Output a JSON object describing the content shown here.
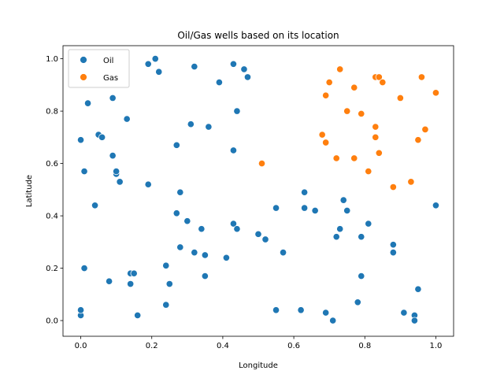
{
  "chart_data": {
    "type": "scatter",
    "title": "Oil/Gas wells based on its location",
    "xlabel": "Longitude",
    "ylabel": "Latitude",
    "xlim": [
      -0.05,
      1.05
    ],
    "ylim": [
      -0.06,
      1.05
    ],
    "xticks": [
      0.0,
      0.2,
      0.4,
      0.6,
      0.8,
      1.0
    ],
    "yticks": [
      0.0,
      0.2,
      0.4,
      0.6,
      0.8,
      1.0
    ],
    "xtick_labels": [
      "0.0",
      "0.2",
      "0.4",
      "0.6",
      "0.8",
      "1.0"
    ],
    "ytick_labels": [
      "0.0",
      "0.2",
      "0.4",
      "0.6",
      "0.8",
      "1.0"
    ],
    "grid": false,
    "legend_position": "top-left",
    "series": [
      {
        "name": "Oil",
        "color": "#1f77b4",
        "points": [
          [
            0.0,
            0.02
          ],
          [
            0.0,
            0.04
          ],
          [
            0.01,
            0.2
          ],
          [
            0.0,
            0.69
          ],
          [
            0.02,
            0.83
          ],
          [
            0.01,
            0.57
          ],
          [
            0.04,
            0.44
          ],
          [
            0.05,
            0.71
          ],
          [
            0.06,
            0.7
          ],
          [
            0.08,
            0.15
          ],
          [
            0.09,
            0.63
          ],
          [
            0.09,
            0.85
          ],
          [
            0.1,
            0.56
          ],
          [
            0.1,
            0.57
          ],
          [
            0.11,
            0.53
          ],
          [
            0.13,
            0.77
          ],
          [
            0.14,
            0.18
          ],
          [
            0.14,
            0.14
          ],
          [
            0.15,
            0.18
          ],
          [
            0.16,
            0.02
          ],
          [
            0.19,
            0.98
          ],
          [
            0.19,
            0.52
          ],
          [
            0.21,
            1.0
          ],
          [
            0.22,
            0.95
          ],
          [
            0.24,
            0.21
          ],
          [
            0.24,
            0.06
          ],
          [
            0.25,
            0.14
          ],
          [
            0.27,
            0.67
          ],
          [
            0.27,
            0.41
          ],
          [
            0.28,
            0.49
          ],
          [
            0.28,
            0.28
          ],
          [
            0.3,
            0.38
          ],
          [
            0.31,
            0.75
          ],
          [
            0.32,
            0.97
          ],
          [
            0.32,
            0.26
          ],
          [
            0.34,
            0.35
          ],
          [
            0.35,
            0.17
          ],
          [
            0.35,
            0.25
          ],
          [
            0.36,
            0.74
          ],
          [
            0.39,
            0.91
          ],
          [
            0.41,
            0.24
          ],
          [
            0.43,
            0.65
          ],
          [
            0.43,
            0.98
          ],
          [
            0.43,
            0.37
          ],
          [
            0.44,
            0.8
          ],
          [
            0.44,
            0.35
          ],
          [
            0.46,
            0.96
          ],
          [
            0.47,
            0.93
          ],
          [
            0.5,
            0.33
          ],
          [
            0.52,
            0.31
          ],
          [
            0.55,
            0.43
          ],
          [
            0.55,
            0.04
          ],
          [
            0.57,
            0.26
          ],
          [
            0.62,
            0.04
          ],
          [
            0.63,
            0.49
          ],
          [
            0.63,
            0.43
          ],
          [
            0.66,
            0.42
          ],
          [
            0.69,
            0.03
          ],
          [
            0.71,
            0.0
          ],
          [
            0.72,
            0.32
          ],
          [
            0.73,
            0.35
          ],
          [
            0.74,
            0.46
          ],
          [
            0.75,
            0.42
          ],
          [
            0.78,
            0.07
          ],
          [
            0.79,
            0.32
          ],
          [
            0.79,
            0.17
          ],
          [
            0.81,
            0.37
          ],
          [
            0.88,
            0.29
          ],
          [
            0.88,
            0.26
          ],
          [
            0.91,
            0.03
          ],
          [
            0.94,
            0.02
          ],
          [
            0.94,
            0.0
          ],
          [
            0.95,
            0.12
          ],
          [
            1.0,
            0.44
          ]
        ]
      },
      {
        "name": "Gas",
        "color": "#ff7f0e",
        "points": [
          [
            0.51,
            0.6
          ],
          [
            0.68,
            0.71
          ],
          [
            0.69,
            0.68
          ],
          [
            0.69,
            0.86
          ],
          [
            0.7,
            0.91
          ],
          [
            0.72,
            0.62
          ],
          [
            0.73,
            0.96
          ],
          [
            0.75,
            0.8
          ],
          [
            0.77,
            0.62
          ],
          [
            0.77,
            0.89
          ],
          [
            0.79,
            0.79
          ],
          [
            0.81,
            0.57
          ],
          [
            0.83,
            0.74
          ],
          [
            0.83,
            0.7
          ],
          [
            0.83,
            0.93
          ],
          [
            0.84,
            0.93
          ],
          [
            0.84,
            0.64
          ],
          [
            0.85,
            0.91
          ],
          [
            0.88,
            0.51
          ],
          [
            0.9,
            0.85
          ],
          [
            0.93,
            0.53
          ],
          [
            0.95,
            0.69
          ],
          [
            0.96,
            0.93
          ],
          [
            0.97,
            0.73
          ],
          [
            1.0,
            0.87
          ]
        ]
      }
    ]
  }
}
